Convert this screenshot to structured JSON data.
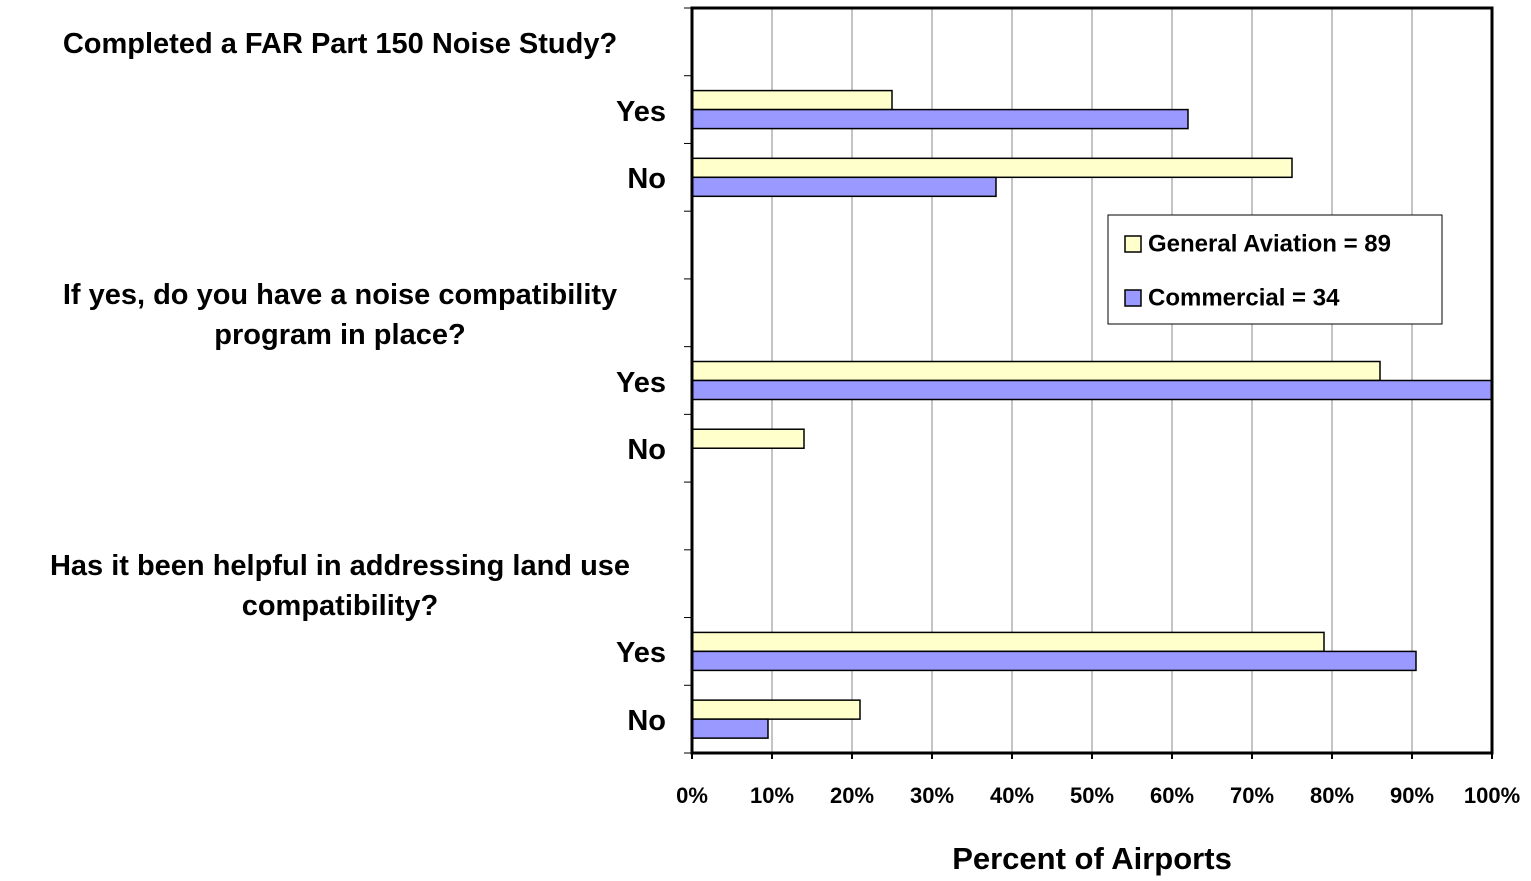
{
  "chart_data": {
    "type": "barh",
    "categories": [
      "Completed a FAR Part 150 Noise Study?",
      "Yes",
      "No",
      null,
      "If yes, do you have a noise compatibility program in place?",
      "Yes",
      "No",
      null,
      "Has it been helpful in addressing land use compatibility?",
      "Yes",
      "No"
    ],
    "series": [
      {
        "name": "General Aviation = 89",
        "color": "#ffffcc",
        "values": [
          null,
          25,
          75,
          null,
          null,
          86,
          14,
          null,
          null,
          79,
          21
        ]
      },
      {
        "name": "Commercial = 34",
        "color": "#9999ff",
        "values": [
          null,
          62,
          38,
          null,
          null,
          100,
          0,
          null,
          null,
          90.5,
          9.5
        ]
      }
    ],
    "xlim": [
      0,
      100
    ],
    "xticks": [
      {
        "value": 0,
        "label": "0%"
      },
      {
        "value": 10,
        "label": "10%"
      },
      {
        "value": 20,
        "label": "20%"
      },
      {
        "value": 30,
        "label": "30%"
      },
      {
        "value": 40,
        "label": "40%"
      },
      {
        "value": 50,
        "label": "50%"
      },
      {
        "value": 60,
        "label": "60%"
      },
      {
        "value": 70,
        "label": "70%"
      },
      {
        "value": 80,
        "label": "80%"
      },
      {
        "value": 90,
        "label": "90%"
      },
      {
        "value": 100,
        "label": "100%"
      }
    ],
    "xlabel": "Percent of Airports",
    "grid": true,
    "legend": "right"
  }
}
